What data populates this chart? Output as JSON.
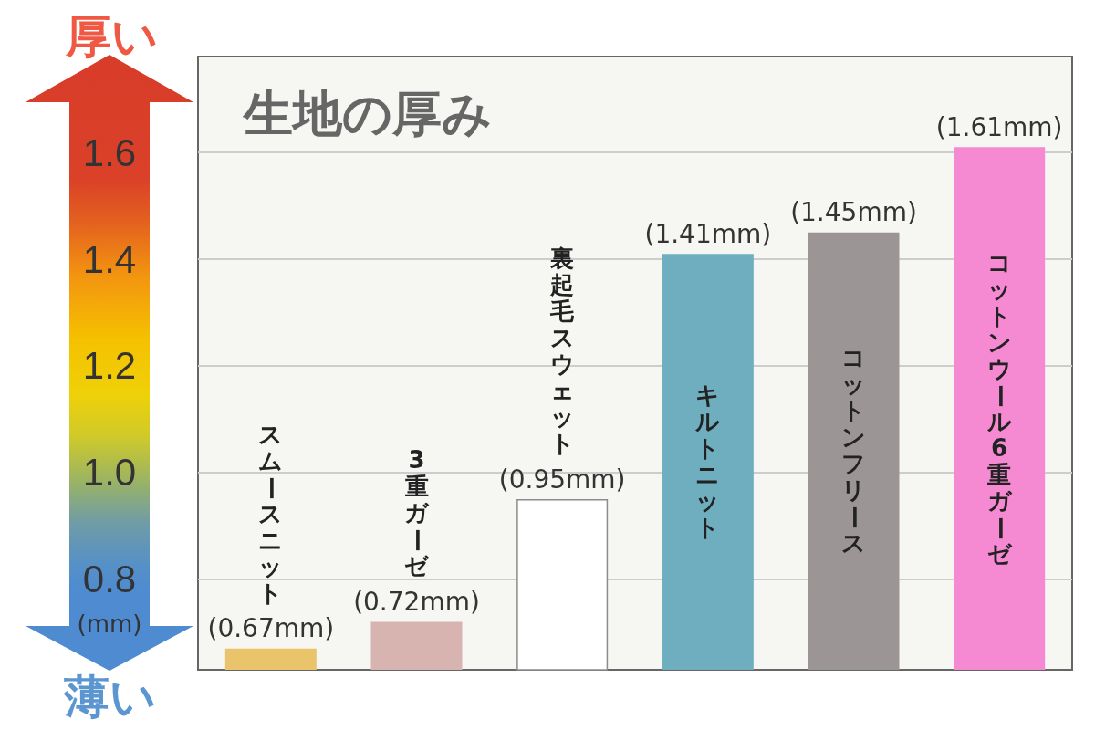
{
  "chart_data": {
    "type": "bar",
    "title": "生地の厚み",
    "ylabel": "(mm)",
    "annotations": [
      "厚い",
      "薄い"
    ],
    "categories": [
      "スムースニット",
      "3重ガーゼ",
      "裏起毛スウェット",
      "キルトニット",
      "コットンフリース",
      "コットンウール6重ガーゼ"
    ],
    "values": [
      0.67,
      0.72,
      0.95,
      1.41,
      1.45,
      1.61
    ],
    "value_labels": [
      "(0.67mm)",
      "(0.72mm)",
      "(0.95mm)",
      "(1.41mm)",
      "(1.45mm)",
      "(1.61mm)"
    ],
    "colors": [
      "#e9c46a",
      "#d8b4b0",
      "#ffffff",
      "#6eaebf",
      "#9b9595",
      "#f589d2"
    ],
    "ylim": [
      0.63,
      1.78
    ],
    "yticks": [
      0.8,
      {
        "value": 1,
        "label": "1.0"
      },
      1.2,
      1.4,
      1.6
    ],
    "grid": "y"
  }
}
